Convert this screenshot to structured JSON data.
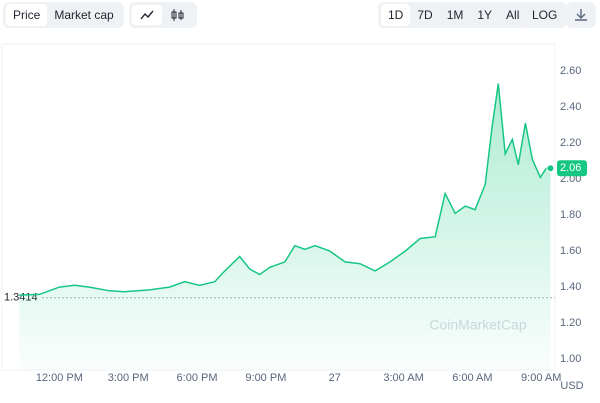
{
  "controls": {
    "view": [
      "Price",
      "Market cap"
    ],
    "ranges": [
      "1D",
      "7D",
      "1M",
      "1Y",
      "All"
    ],
    "log": "LOG"
  },
  "chart_data": {
    "type": "line",
    "currency": "USD",
    "watermark": "CoinMarketCap",
    "x": [
      10.25,
      11.13,
      12,
      12.66,
      13.31,
      14.18,
      14.84,
      15.93,
      16.8,
      17.46,
      18.11,
      18.77,
      19.21,
      19.86,
      20.3,
      20.73,
      21.17,
      21.83,
      22.26,
      22.7,
      23.14,
      23.79,
      24.45,
      25.1,
      25.76,
      26.41,
      27.07,
      27.72,
      28.38,
      28.81,
      29.25,
      29.69,
      30.12,
      30.56,
      30.86,
      31.13,
      31.43,
      31.74,
      32,
      32.31,
      32.61,
      32.96,
      33.22,
      33.4
    ],
    "series": [
      {
        "name": "Price",
        "color": "#16c784",
        "values": [
          1.356,
          1.36,
          1.4,
          1.41,
          1.4,
          1.38,
          1.375,
          1.385,
          1.4,
          1.43,
          1.41,
          1.43,
          1.49,
          1.57,
          1.5,
          1.47,
          1.51,
          1.54,
          1.63,
          1.61,
          1.63,
          1.6,
          1.54,
          1.53,
          1.49,
          1.54,
          1.6,
          1.67,
          1.68,
          1.92,
          1.81,
          1.85,
          1.83,
          1.97,
          2.29,
          2.53,
          2.14,
          2.22,
          2.08,
          2.31,
          2.11,
          2.01,
          2.06,
          2.06
        ]
      }
    ],
    "current_price": {
      "value": 2.06,
      "label": "2.06"
    },
    "reference_line": 1.3414,
    "xlim": [
      9.5,
      33.6
    ],
    "xticks": [
      {
        "value": 12,
        "label": "12:00 PM"
      },
      {
        "value": 15,
        "label": "3:00 PM"
      },
      {
        "value": 18,
        "label": "6:00 PM"
      },
      {
        "value": 21,
        "label": "9:00 PM"
      },
      {
        "value": 24,
        "label": "27"
      },
      {
        "value": 27,
        "label": "3:00 AM"
      },
      {
        "value": 30,
        "label": "6:00 AM"
      },
      {
        "value": 33,
        "label": "9:00 AM"
      }
    ],
    "ylim": [
      0.94,
      2.75
    ],
    "yticks": [
      {
        "value": 1,
        "label": "1.00"
      },
      {
        "value": 1.2,
        "label": "1.20"
      },
      {
        "value": 1.4,
        "label": "1.40"
      },
      {
        "value": 1.6,
        "label": "1.60"
      },
      {
        "value": 1.8,
        "label": "1.80"
      },
      {
        "value": 2,
        "label": "2.00"
      },
      {
        "value": 2.2,
        "label": "2.20"
      },
      {
        "value": 2.4,
        "label": "2.40"
      },
      {
        "value": 2.6,
        "label": "2.60"
      }
    ],
    "grid": false
  }
}
